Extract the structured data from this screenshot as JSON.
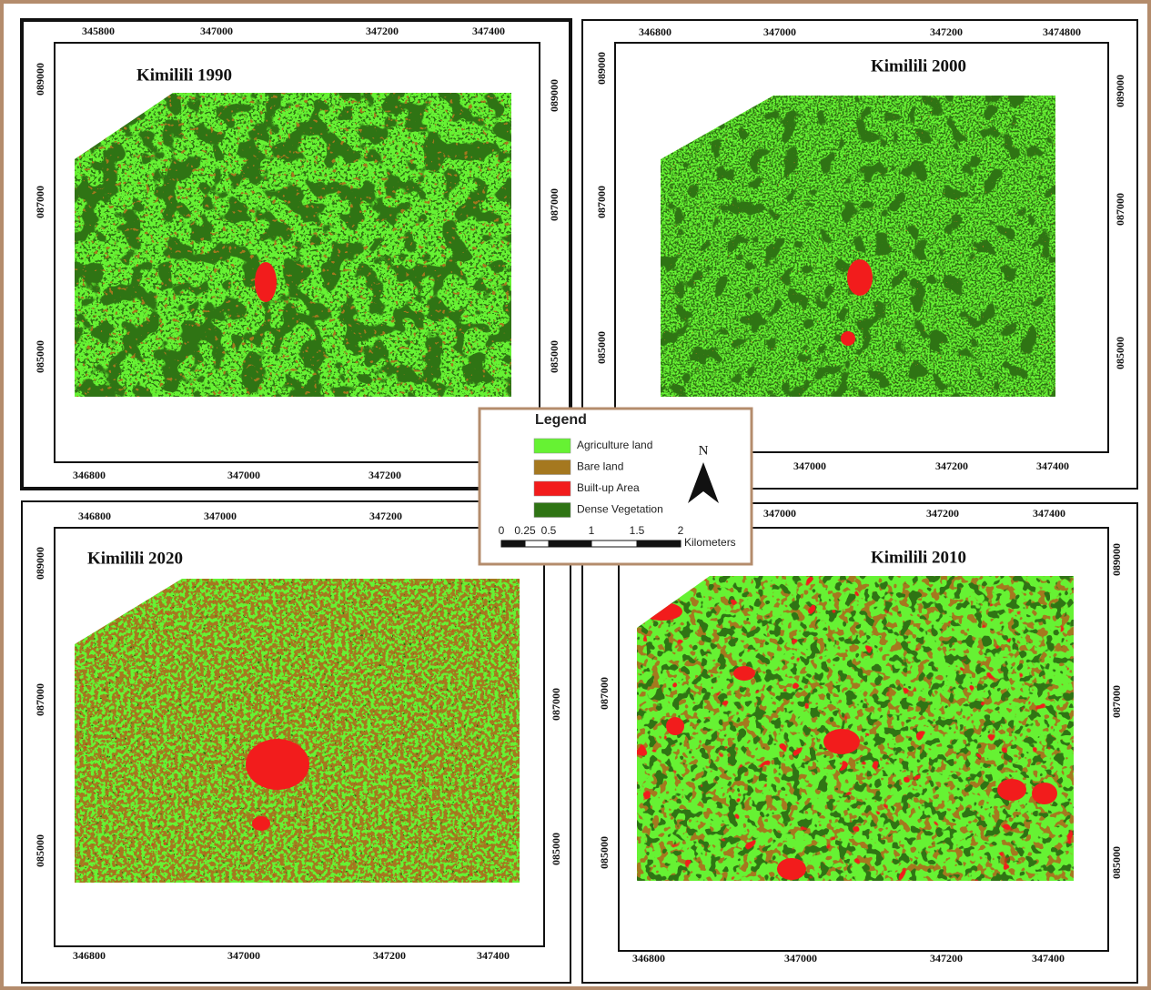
{
  "panels": [
    {
      "title": "Kimilili 1990",
      "top": [
        "345800",
        "347000",
        "347200",
        "347400"
      ],
      "bottom": [
        "346800",
        "347000",
        "347200"
      ],
      "left": [
        "089000",
        "087000",
        "085000"
      ],
      "right": [
        "089000",
        "087000",
        "085000"
      ]
    },
    {
      "title": "Kimilili 2000",
      "top": [
        "346800",
        "347000",
        "347200",
        "3474800"
      ],
      "bottom": [
        "347000",
        "347200",
        "347400"
      ],
      "left": [
        "089000",
        "087000",
        "085000"
      ],
      "right": [
        "089000",
        "087000",
        "085000"
      ]
    },
    {
      "title": "Kimilili 2020",
      "top": [
        "346800",
        "347000",
        "347200"
      ],
      "bottom": [
        "346800",
        "347000",
        "347200",
        "347400"
      ],
      "left": [
        "089000",
        "087000",
        "085000"
      ],
      "right": [
        "087000",
        "085000"
      ]
    },
    {
      "title": "Kimilili 2010",
      "top": [
        "347000",
        "347200",
        "347400"
      ],
      "bottom": [
        "346800",
        "347000",
        "347200",
        "347400"
      ],
      "left": [
        "087000",
        "085000"
      ],
      "right": [
        "089000",
        "087000",
        "085000"
      ]
    }
  ],
  "legend": {
    "title": "Legend",
    "items": [
      {
        "label": "Agriculture land",
        "color": "#66f233"
      },
      {
        "label": "Bare land",
        "color": "#a5781f"
      },
      {
        "label": "Built-up Area",
        "color": "#f21c1c"
      },
      {
        "label": "Dense Vegetation",
        "color": "#2f7414"
      }
    ],
    "north": "N",
    "scale": {
      "labels": [
        "0",
        "0.25",
        "0.5",
        "1",
        "1.5",
        "2"
      ],
      "unit": "Kilometers"
    }
  }
}
